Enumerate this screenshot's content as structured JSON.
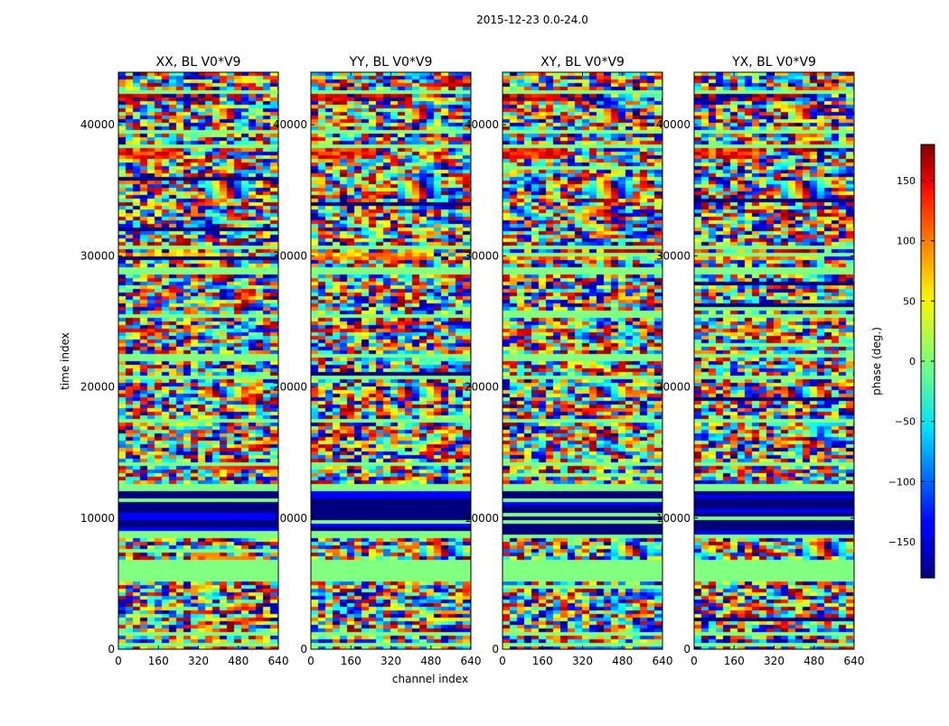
{
  "suptitle": "2015-12-23 0.0-24.0",
  "chart_data": {
    "type": "heatmap",
    "panels": [
      {
        "title": "XX, BL V0*V9",
        "correlation": "XX"
      },
      {
        "title": "YY, BL V0*V9",
        "correlation": "YY"
      },
      {
        "title": "XY, BL V0*V9",
        "correlation": "XY"
      },
      {
        "title": "YX, BL V0*V9",
        "correlation": "YX"
      }
    ],
    "xlabel": "channel index",
    "ylabel": "time index",
    "xlim": [
      0,
      640
    ],
    "ylim": [
      0,
      44000
    ],
    "xticks": [
      0,
      160,
      320,
      480,
      640
    ],
    "xtick_labels": [
      "0",
      "160",
      "320",
      "480",
      "640"
    ],
    "yticks": [
      0,
      10000,
      20000,
      30000,
      40000
    ],
    "ytick_labels": [
      "0",
      "10000",
      "20000",
      "30000",
      "40000"
    ],
    "colorbar": {
      "label": "phase (deg.)",
      "range": [
        -180,
        180
      ],
      "ticks": [
        150,
        100,
        50,
        0,
        -50,
        -100,
        -150
      ],
      "tick_labels": [
        "150",
        "100",
        "50",
        "0",
        "−50",
        "−100",
        "−150"
      ],
      "colormap": "jet"
    },
    "flagged_bands_time": [
      [
        300,
        500
      ],
      [
        900,
        1400
      ],
      [
        5300,
        6300
      ],
      [
        6400,
        6700
      ],
      [
        8400,
        8700
      ],
      [
        11400,
        11500
      ],
      [
        12000,
        12700
      ],
      [
        13900,
        14200
      ],
      [
        17300,
        17500
      ],
      [
        20600,
        20800
      ],
      [
        22200,
        22400
      ],
      [
        25300,
        25600
      ],
      [
        28700,
        29000
      ],
      [
        30500,
        30800
      ],
      [
        33700,
        33900
      ],
      [
        36200,
        36400
      ],
      [
        38300,
        38600
      ],
      [
        39300,
        39500
      ],
      [
        40900,
        41100
      ],
      [
        42300,
        42600
      ]
    ],
    "blue_flagged_band_time": [
      8800,
      12000
    ],
    "high_phase_streaks": [
      {
        "time": [
          41800,
          42500
        ],
        "channel": [
          0,
          400
        ],
        "phase": 160
      },
      {
        "time": [
          37300,
          38200
        ],
        "channel": [
          0,
          250
        ],
        "phase": 120
      },
      {
        "time": [
          29800,
          30200
        ],
        "channel": [
          0,
          500
        ],
        "phase": 80
      },
      {
        "time": [
          24100,
          24500
        ],
        "channel": [
          0,
          300
        ],
        "phase": 120
      }
    ],
    "fringe_blobs": [
      {
        "time": [
          40300,
          41300
        ],
        "channel": [
          380,
          500
        ]
      },
      {
        "time": [
          34300,
          35800
        ],
        "channel": [
          360,
          520
        ]
      },
      {
        "time": [
          29200,
          30000
        ],
        "channel": [
          400,
          520
        ]
      },
      {
        "time": [
          19100,
          20100
        ],
        "channel": [
          340,
          520
        ]
      },
      {
        "time": [
          7100,
          7900
        ],
        "channel": [
          420,
          600
        ]
      }
    ]
  }
}
